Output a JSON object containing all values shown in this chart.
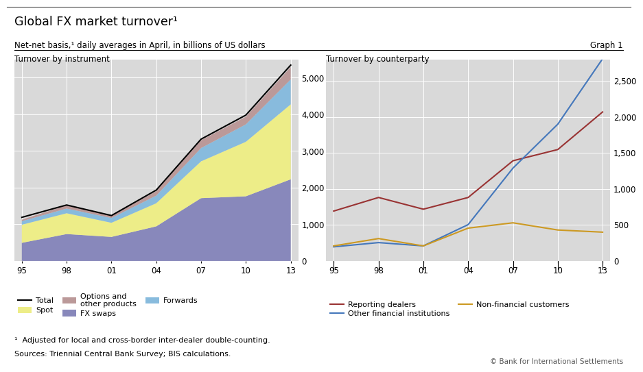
{
  "years": [
    1995,
    1998,
    2001,
    2004,
    2007,
    2010,
    2013
  ],
  "year_labels": [
    "95",
    "98",
    "01",
    "04",
    "07",
    "10",
    "13"
  ],
  "instrument": {
    "fx_swaps": [
      494,
      734,
      656,
      944,
      1714,
      1765,
      2228
    ],
    "spot": [
      494,
      568,
      386,
      631,
      1005,
      1488,
      2046
    ],
    "forwards": [
      97,
      128,
      130,
      208,
      362,
      475,
      680
    ],
    "options": [
      41,
      87,
      60,
      119,
      212,
      207,
      337
    ],
    "total": [
      1190,
      1527,
      1239,
      1934,
      3324,
      3981,
      5345
    ]
  },
  "counterparty": {
    "reporting_dealers": [
      693,
      882,
      719,
      882,
      1392,
      1548,
      2070
    ],
    "other_financial": [
      196,
      255,
      209,
      505,
      1290,
      1900,
      2809
    ],
    "non_financial_customers": [
      209,
      311,
      209,
      456,
      530,
      430,
      400
    ]
  },
  "colors": {
    "fx_swaps": "#8888bb",
    "spot": "#eded88",
    "forwards": "#88bbdd",
    "options": "#bb9999",
    "total": "#000000",
    "reporting_dealers": "#993333",
    "other_financial": "#4477bb",
    "non_financial_customers": "#cc9922"
  },
  "title": "Global FX market turnover¹",
  "subtitle": "Net-net basis,¹ daily averages in April, in billions of US dollars",
  "graph_label": "Graph 1",
  "left_panel_title": "Turnover by instrument",
  "right_panel_title": "Turnover by counterparty",
  "footnote1": "¹  Adjusted for local and cross-border inter-dealer double-counting.",
  "footnote2": "Sources: Triennial Central Bank Survey; BIS calculations.",
  "copyright": "© Bank for International Settlements",
  "left_ylim": [
    0,
    5500
  ],
  "left_yticks": [
    0,
    1000,
    2000,
    3000,
    4000,
    5000
  ],
  "right_ylim": [
    0,
    2800
  ],
  "right_yticks": [
    0,
    500,
    1000,
    1500,
    2000,
    2500
  ],
  "bg_color": "#d9d9d9",
  "fig_bg": "#ffffff"
}
